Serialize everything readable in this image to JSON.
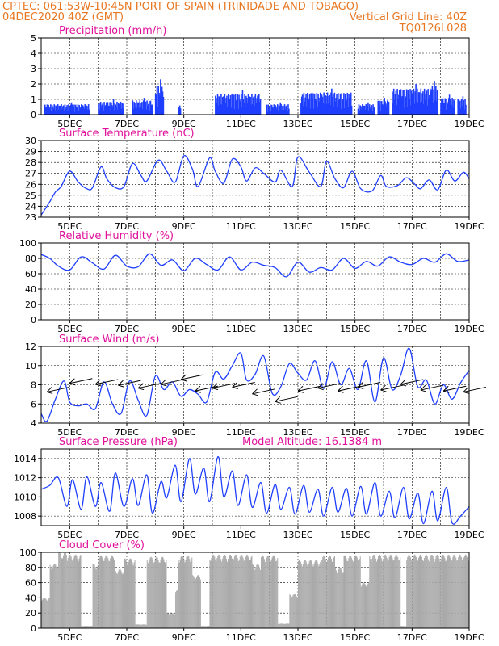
{
  "header": {
    "line1": "CPTEC:  061:53W-10:45N  PORT OF SPAIN (TRINIDADE AND TOBAGO)",
    "line2_left": "04DEC2020 40Z (GMT)",
    "line2_right": "Vertical Grid Line: 40Z",
    "line3_right": "TQ0126L028"
  },
  "colors": {
    "header": "#e87722",
    "panel_title": "#e0109a",
    "series": "#1f3fff",
    "cloud": "#a9a9a9",
    "grid": "#000000"
  },
  "x_axis": {
    "start_day": 4,
    "end_day": 19,
    "ticks": [
      "5DEC",
      "7DEC",
      "9DEC",
      "11DEC",
      "13DEC",
      "15DEC",
      "17DEC",
      "19DEC"
    ],
    "tick_days": [
      5,
      7,
      9,
      11,
      13,
      15,
      17,
      19
    ],
    "grid_days": [
      5,
      6,
      7,
      8,
      9,
      10,
      11,
      12,
      13,
      14,
      15,
      16,
      17,
      18,
      19
    ]
  },
  "chart_data": [
    {
      "type": "bar",
      "title": "Precipitation (mm/h)",
      "ylim": [
        0,
        5
      ],
      "yticks": [
        0,
        1,
        2,
        3,
        4,
        5
      ],
      "bursts": [
        {
          "start": 4.1,
          "end": 5.7,
          "peak": 0.8
        },
        {
          "start": 6.0,
          "end": 6.9,
          "peak": 1.0
        },
        {
          "start": 7.2,
          "end": 7.9,
          "peak": 1.1
        },
        {
          "start": 8.0,
          "end": 8.3,
          "peak": 2.3
        },
        {
          "start": 8.8,
          "end": 8.9,
          "peak": 0.6
        },
        {
          "start": 10.1,
          "end": 11.7,
          "peak": 1.6
        },
        {
          "start": 11.9,
          "end": 12.7,
          "peak": 0.8
        },
        {
          "start": 13.1,
          "end": 14.9,
          "peak": 1.7
        },
        {
          "start": 15.1,
          "end": 15.7,
          "peak": 0.8
        },
        {
          "start": 15.8,
          "end": 16.2,
          "peak": 1.1
        },
        {
          "start": 16.3,
          "end": 17.7,
          "peak": 2.0
        },
        {
          "start": 17.6,
          "end": 17.9,
          "peak": 2.2
        },
        {
          "start": 18.0,
          "end": 18.5,
          "peak": 1.3
        },
        {
          "start": 18.6,
          "end": 18.9,
          "peak": 1.2
        }
      ]
    },
    {
      "type": "line",
      "title": "Surface Temperature (nC)",
      "ylim": [
        23,
        30
      ],
      "yticks": [
        23,
        24,
        25,
        26,
        27,
        28,
        29,
        30
      ],
      "x": [
        4.0,
        4.3,
        4.5,
        4.7,
        5.0,
        5.3,
        5.6,
        5.8,
        6.1,
        6.3,
        6.6,
        6.9,
        7.2,
        7.5,
        7.7,
        8.1,
        8.4,
        8.7,
        9.0,
        9.3,
        9.5,
        9.9,
        10.1,
        10.4,
        10.7,
        11.0,
        11.2,
        11.5,
        11.8,
        12.2,
        12.4,
        12.8,
        13.0,
        13.4,
        13.8,
        14.0,
        14.3,
        14.6,
        14.9,
        15.2,
        15.6,
        15.9,
        16.1,
        16.5,
        16.8,
        17.1,
        17.3,
        17.6,
        17.9,
        18.2,
        18.5,
        18.8,
        19.0
      ],
      "y": [
        23.2,
        24.4,
        25.3,
        25.8,
        27.2,
        26.2,
        25.6,
        25.7,
        27.6,
        26.5,
        25.7,
        25.8,
        27.9,
        26.8,
        26.3,
        28.2,
        27.2,
        26.2,
        28.6,
        27.4,
        25.8,
        28.4,
        27.2,
        26.1,
        28.3,
        27.6,
        26.3,
        27.5,
        27.0,
        26.2,
        27.3,
        25.8,
        28.5,
        27.1,
        25.8,
        28.1,
        26.5,
        25.7,
        27.2,
        25.6,
        25.4,
        26.8,
        25.8,
        25.9,
        26.6,
        26.0,
        25.6,
        26.4,
        25.5,
        27.3,
        26.3,
        27.1,
        26.5
      ]
    },
    {
      "type": "line",
      "title": "Relative Humidity (%)",
      "ylim": [
        0,
        100
      ],
      "yticks": [
        0,
        20,
        40,
        60,
        80,
        100
      ],
      "x": [
        4.0,
        4.3,
        4.6,
        5.0,
        5.4,
        5.8,
        6.2,
        6.6,
        7.0,
        7.4,
        7.8,
        8.2,
        8.6,
        9.0,
        9.4,
        9.8,
        10.2,
        10.6,
        11.0,
        11.4,
        11.8,
        12.2,
        12.6,
        13.0,
        13.4,
        13.8,
        14.2,
        14.6,
        15.0,
        15.4,
        15.8,
        16.2,
        16.6,
        17.0,
        17.4,
        17.8,
        18.2,
        18.6,
        19.0
      ],
      "y": [
        85,
        80,
        70,
        65,
        82,
        74,
        66,
        84,
        70,
        69,
        86,
        71,
        78,
        64,
        80,
        72,
        65,
        82,
        65,
        75,
        71,
        68,
        56,
        75,
        62,
        68,
        65,
        80,
        67,
        76,
        70,
        82,
        75,
        72,
        80,
        75,
        86,
        76,
        78
      ]
    },
    {
      "type": "line",
      "title": "Surface Wind (m/s)",
      "ylim": [
        4,
        12
      ],
      "yticks": [
        4,
        6,
        8,
        10,
        12
      ],
      "x": [
        4.0,
        4.2,
        4.5,
        4.8,
        5.0,
        5.3,
        5.6,
        5.9,
        6.2,
        6.5,
        6.8,
        7.1,
        7.4,
        7.7,
        8.0,
        8.3,
        8.6,
        8.9,
        9.2,
        9.5,
        9.8,
        10.1,
        10.4,
        10.7,
        11.0,
        11.2,
        11.5,
        11.8,
        12.1,
        12.4,
        12.7,
        13.0,
        13.3,
        13.6,
        13.9,
        14.2,
        14.5,
        14.8,
        15.1,
        15.4,
        15.7,
        16.0,
        16.3,
        16.6,
        16.9,
        17.2,
        17.5,
        17.8,
        18.1,
        18.4,
        18.7,
        19.0
      ],
      "y": [
        5.0,
        4.2,
        6.5,
        8.4,
        6.2,
        5.8,
        6.0,
        5.5,
        8.3,
        6.0,
        5.0,
        8.4,
        6.4,
        4.8,
        8.9,
        7.5,
        8.3,
        6.8,
        7.5,
        7.0,
        6.2,
        9.3,
        8.6,
        10.0,
        11.3,
        8.5,
        9.1,
        11.0,
        7.1,
        7.8,
        10.2,
        9.2,
        8.5,
        10.5,
        7.6,
        10.4,
        8.0,
        9.7,
        7.5,
        10.5,
        6.2,
        10.8,
        7.5,
        9.0,
        11.8,
        7.8,
        8.5,
        6.0,
        8.0,
        6.5,
        8.2,
        9.5
      ]
    },
    {
      "type": "line",
      "title": "Surface Pressure (hPa)",
      "annotation": "Model Altitude: 16.1384 m",
      "ylim": [
        1007,
        1015
      ],
      "yticks": [
        1008,
        1010,
        1012,
        1014
      ],
      "x": [
        4.0,
        4.3,
        4.6,
        4.9,
        5.1,
        5.4,
        5.6,
        5.9,
        6.1,
        6.4,
        6.6,
        6.9,
        7.2,
        7.4,
        7.7,
        7.9,
        8.2,
        8.4,
        8.7,
        8.9,
        9.2,
        9.4,
        9.7,
        9.9,
        10.2,
        10.4,
        10.7,
        10.9,
        11.2,
        11.4,
        11.7,
        11.9,
        12.2,
        12.4,
        12.7,
        12.9,
        13.2,
        13.4,
        13.7,
        13.9,
        14.2,
        14.4,
        14.7,
        14.9,
        15.2,
        15.4,
        15.7,
        15.9,
        16.2,
        16.4,
        16.7,
        16.9,
        17.2,
        17.4,
        17.7,
        17.9,
        18.2,
        18.4,
        18.7,
        19.0
      ],
      "y": [
        1010.8,
        1011.2,
        1012.0,
        1009.0,
        1011.8,
        1008.7,
        1012.1,
        1009.0,
        1011.5,
        1008.5,
        1012.5,
        1009.0,
        1011.9,
        1009.1,
        1012.3,
        1008.3,
        1011.6,
        1009.9,
        1013.3,
        1009.5,
        1014.0,
        1010.3,
        1013.0,
        1009.5,
        1014.2,
        1010.0,
        1012.7,
        1009.1,
        1012.3,
        1008.9,
        1011.5,
        1008.3,
        1011.3,
        1008.7,
        1011.0,
        1008.2,
        1011.2,
        1008.4,
        1010.8,
        1008.0,
        1011.0,
        1008.4,
        1010.9,
        1008.0,
        1011.1,
        1008.2,
        1011.5,
        1008.0,
        1010.6,
        1007.8,
        1011.0,
        1007.7,
        1010.4,
        1007.2,
        1010.6,
        1007.5,
        1011.0,
        1007.3,
        1008.0,
        1009.0
      ]
    },
    {
      "type": "area",
      "title": "Cloud Cover (%)",
      "ylim": [
        0,
        100
      ],
      "yticks": [
        0,
        20,
        40,
        60,
        80,
        100
      ],
      "segments": [
        {
          "start": 4.0,
          "end": 4.3,
          "level": 40
        },
        {
          "start": 4.3,
          "end": 4.6,
          "level": 85
        },
        {
          "start": 4.6,
          "end": 4.9,
          "level": 100
        },
        {
          "start": 4.9,
          "end": 5.4,
          "level": 97
        },
        {
          "start": 5.4,
          "end": 5.8,
          "level": 3
        },
        {
          "start": 5.8,
          "end": 6.0,
          "level": 85
        },
        {
          "start": 6.0,
          "end": 6.6,
          "level": 96
        },
        {
          "start": 6.6,
          "end": 6.9,
          "level": 78
        },
        {
          "start": 6.9,
          "end": 7.3,
          "level": 92
        },
        {
          "start": 7.3,
          "end": 7.7,
          "level": 5
        },
        {
          "start": 7.7,
          "end": 8.4,
          "level": 94
        },
        {
          "start": 8.4,
          "end": 8.7,
          "level": 20
        },
        {
          "start": 8.7,
          "end": 8.8,
          "level": 50
        },
        {
          "start": 8.8,
          "end": 9.3,
          "level": 96
        },
        {
          "start": 9.3,
          "end": 9.6,
          "level": 70
        },
        {
          "start": 9.6,
          "end": 9.9,
          "level": 3
        },
        {
          "start": 9.9,
          "end": 11.4,
          "level": 97
        },
        {
          "start": 11.4,
          "end": 11.7,
          "level": 85
        },
        {
          "start": 11.7,
          "end": 12.3,
          "level": 96
        },
        {
          "start": 12.3,
          "end": 12.7,
          "level": 6
        },
        {
          "start": 12.7,
          "end": 13.0,
          "level": 45
        },
        {
          "start": 13.0,
          "end": 13.8,
          "level": 90
        },
        {
          "start": 13.8,
          "end": 14.3,
          "level": 96
        },
        {
          "start": 14.3,
          "end": 14.6,
          "level": 80
        },
        {
          "start": 14.6,
          "end": 15.2,
          "level": 96
        },
        {
          "start": 15.2,
          "end": 15.5,
          "level": 60
        },
        {
          "start": 15.5,
          "end": 16.6,
          "level": 97
        },
        {
          "start": 16.6,
          "end": 16.8,
          "level": 3
        },
        {
          "start": 16.8,
          "end": 19.0,
          "level": 97
        }
      ]
    }
  ],
  "wind_barbs": [
    {
      "x": 4.2,
      "y": 7.5
    },
    {
      "x": 5.0,
      "y": 8.4
    },
    {
      "x": 5.9,
      "y": 8.3
    },
    {
      "x": 6.7,
      "y": 8.2
    },
    {
      "x": 7.4,
      "y": 7.9
    },
    {
      "x": 8.2,
      "y": 8.3
    },
    {
      "x": 8.9,
      "y": 8.8
    },
    {
      "x": 9.4,
      "y": 7.6
    },
    {
      "x": 10.0,
      "y": 7.9
    },
    {
      "x": 10.7,
      "y": 8.0
    },
    {
      "x": 11.4,
      "y": 7.3
    },
    {
      "x": 12.2,
      "y": 6.5
    },
    {
      "x": 13.0,
      "y": 7.6
    },
    {
      "x": 13.7,
      "y": 7.9
    },
    {
      "x": 14.4,
      "y": 7.6
    },
    {
      "x": 15.1,
      "y": 8.0
    },
    {
      "x": 15.9,
      "y": 7.7
    },
    {
      "x": 16.6,
      "y": 8.3
    },
    {
      "x": 17.3,
      "y": 7.7
    },
    {
      "x": 18.1,
      "y": 7.6
    },
    {
      "x": 18.8,
      "y": 7.5
    }
  ]
}
